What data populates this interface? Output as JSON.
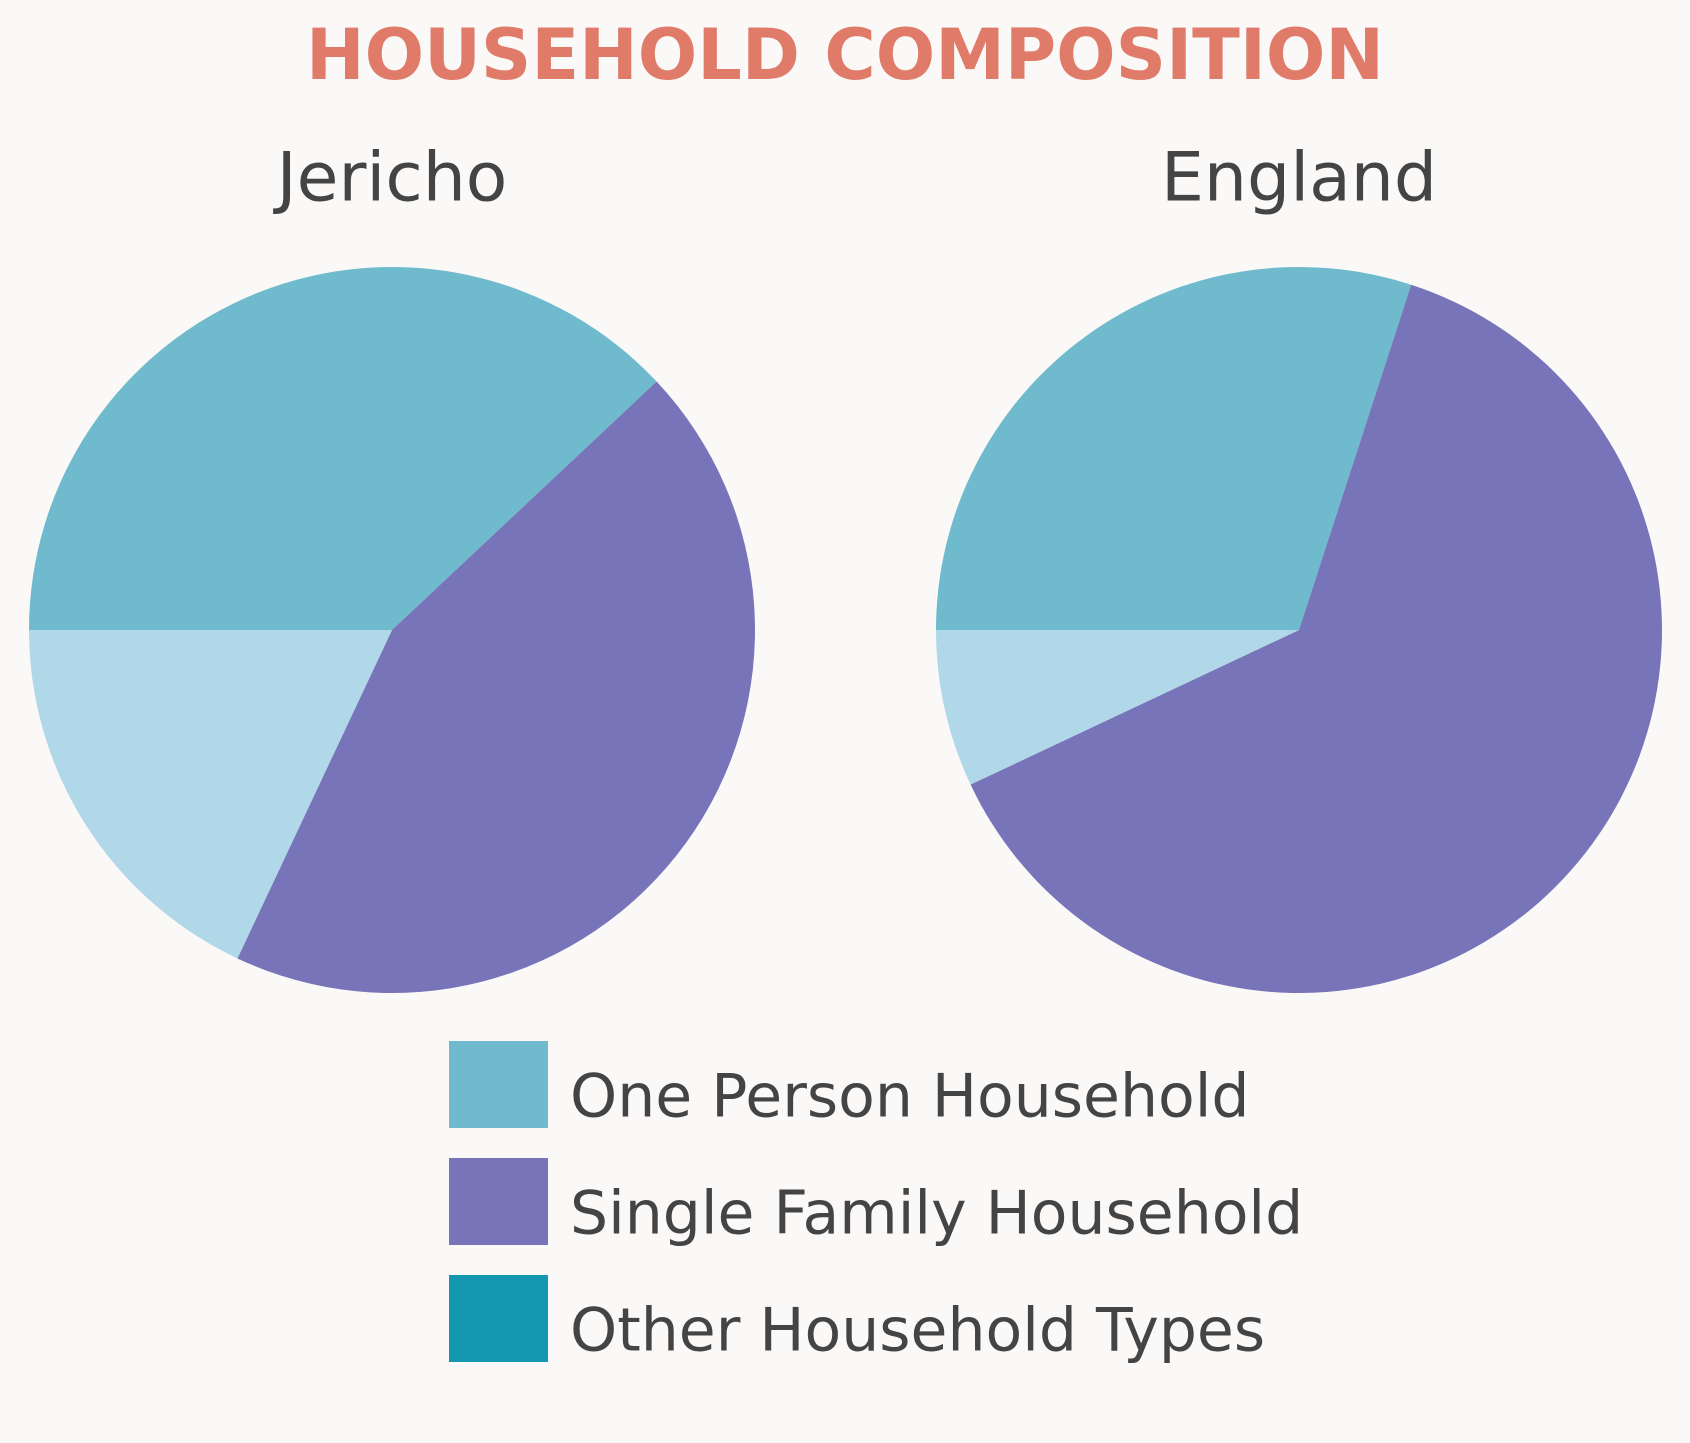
{
  "title": "HOUSEHOLD COMPOSITION",
  "chart_data": [
    {
      "type": "pie",
      "title": "Jericho",
      "values": [
        38,
        44,
        18
      ],
      "colors": [
        "#6fbacd",
        "#7874b9",
        "#b1d8e9"
      ]
    },
    {
      "type": "pie",
      "title": "England",
      "values": [
        30,
        63,
        7
      ],
      "colors": [
        "#6fbacd",
        "#7874b9",
        "#b1d8e9"
      ]
    }
  ],
  "legend": {
    "labels": [
      "One Person Household",
      "Single Family Household",
      "Other Household Types"
    ],
    "colors": [
      "#6fbacd",
      "#7874b9",
      "#1497b0"
    ]
  }
}
